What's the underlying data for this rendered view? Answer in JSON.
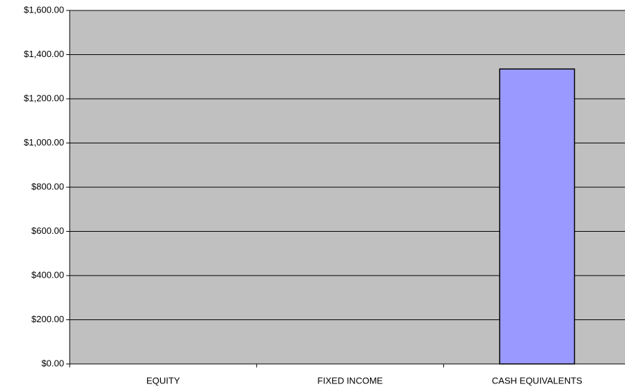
{
  "chart_data": {
    "type": "bar",
    "categories": [
      "EQUITY",
      "FIXED INCOME",
      "CASH EQUIVALENTS"
    ],
    "values": [
      0,
      0,
      1335
    ],
    "color": "#9999ff",
    "ylim": [
      0,
      1600
    ],
    "yticks": [
      {
        "value": 0,
        "label": "$0.00"
      },
      {
        "value": 200,
        "label": "$200.00"
      },
      {
        "value": 400,
        "label": "$400.00"
      },
      {
        "value": 600,
        "label": "$600.00"
      },
      {
        "value": 800,
        "label": "$800.00"
      },
      {
        "value": 1000,
        "label": "$1,000.00"
      },
      {
        "value": 1200,
        "label": "$1,200.00"
      },
      {
        "value": 1400,
        "label": "$1,400.00"
      },
      {
        "value": 1600,
        "label": "$1,600.00"
      }
    ],
    "grid": true
  }
}
